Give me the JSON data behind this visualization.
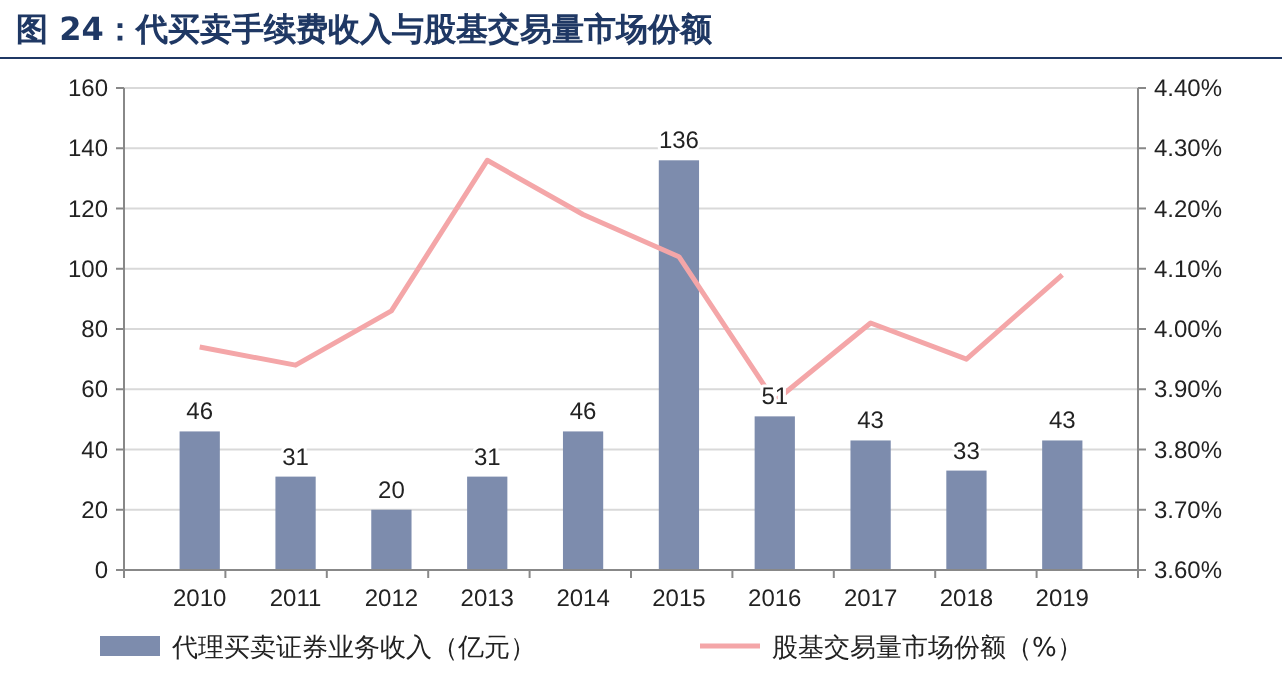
{
  "chart_data": {
    "type": "bar",
    "title": "图 24：代买卖手续费收入与股基交易量市场份额",
    "categories": [
      "2010",
      "2011",
      "2012",
      "2013",
      "2014",
      "2015",
      "2016",
      "2017",
      "2018",
      "2019"
    ],
    "series": [
      {
        "name": "代理买卖证券业务收入（亿元）",
        "color": "#7d8cad",
        "values": [
          46,
          31,
          20,
          31,
          46,
          136,
          51,
          43,
          33,
          43
        ],
        "value_labels": [
          "46",
          "31",
          "20",
          "31",
          "46",
          "136",
          "51",
          "43",
          "33",
          "43"
        ]
      },
      {
        "name": "股基交易量市场份额（%）",
        "type": "line",
        "axis": "y2",
        "color": "#f4a6a8",
        "values": [
          3.97,
          3.94,
          4.03,
          4.28,
          4.19,
          4.12,
          3.88,
          4.01,
          3.95,
          4.09
        ]
      }
    ],
    "ylim": [
      0,
      160
    ],
    "yticks": [
      0,
      20,
      40,
      60,
      80,
      100,
      120,
      140,
      160
    ],
    "y2lim": [
      3.6,
      4.4
    ],
    "y2ticks": [
      {
        "value": 3.6,
        "label": "3.60%"
      },
      {
        "value": 3.7,
        "label": "3.70%"
      },
      {
        "value": 3.8,
        "label": "3.80%"
      },
      {
        "value": 3.9,
        "label": "3.90%"
      },
      {
        "value": 4.0,
        "label": "4.00%"
      },
      {
        "value": 4.1,
        "label": "4.10%"
      },
      {
        "value": 4.2,
        "label": "4.20%"
      },
      {
        "value": 4.3,
        "label": "4.30%"
      },
      {
        "value": 4.4,
        "label": "4.40%"
      }
    ],
    "grid": "y",
    "legend": "bottom",
    "marker": "none",
    "line_style": "solid"
  }
}
